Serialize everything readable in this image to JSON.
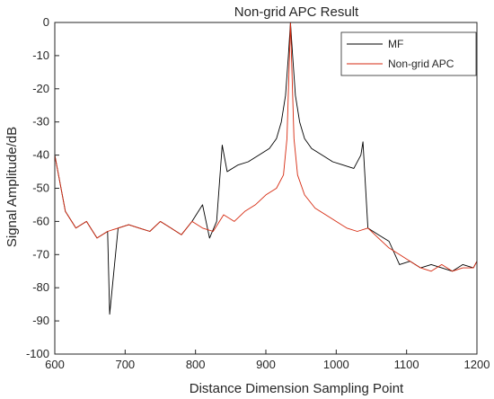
{
  "chart_data": {
    "type": "line",
    "title": "Non-grid APC Result",
    "xlabel": "Distance Dimension Sampling Point",
    "ylabel": "Signal Amplitude/dB",
    "xlim": [
      600,
      1200
    ],
    "ylim": [
      -100,
      0
    ],
    "xticks": [
      600,
      700,
      800,
      900,
      1000,
      1100,
      1200
    ],
    "yticks": [
      0,
      -10,
      -20,
      -30,
      -40,
      -50,
      -60,
      -70,
      -80,
      -90,
      -100
    ],
    "grid": false,
    "legend_position": "top-right",
    "colors": {
      "MF": "#000000",
      "Non-grid APC": "#d62a10",
      "axes": "#262626"
    },
    "series": [
      {
        "name": "MF",
        "x": [
          600,
          615,
          630,
          645,
          660,
          675,
          678,
          690,
          705,
          720,
          735,
          750,
          765,
          780,
          795,
          810,
          820,
          830,
          838,
          845,
          860,
          875,
          890,
          905,
          915,
          922,
          928,
          932,
          935,
          938,
          942,
          948,
          955,
          965,
          980,
          995,
          1010,
          1025,
          1035,
          1038,
          1045,
          1060,
          1075,
          1090,
          1105,
          1120,
          1135,
          1150,
          1165,
          1180,
          1195,
          1200
        ],
        "y": [
          -40,
          -57,
          -62,
          -60,
          -65,
          -63,
          -88,
          -62,
          -61,
          -62,
          -63,
          -60,
          -62,
          -64,
          -60,
          -55,
          -65,
          -60,
          -37,
          -45,
          -43,
          -42,
          -40,
          -38,
          -35,
          -30,
          -22,
          -10,
          0,
          -10,
          -22,
          -30,
          -35,
          -38,
          -40,
          -42,
          -43,
          -44,
          -40,
          -36,
          -62,
          -64,
          -66,
          -73,
          -72,
          -74,
          -73,
          -74,
          -75,
          -73,
          -74,
          -72
        ]
      },
      {
        "name": "Non-grid APC",
        "x": [
          600,
          615,
          630,
          645,
          660,
          675,
          690,
          705,
          720,
          735,
          750,
          765,
          780,
          795,
          810,
          825,
          840,
          855,
          870,
          885,
          900,
          915,
          925,
          930,
          935,
          940,
          945,
          955,
          970,
          985,
          1000,
          1015,
          1030,
          1045,
          1060,
          1075,
          1090,
          1105,
          1120,
          1135,
          1150,
          1165,
          1180,
          1195,
          1200
        ],
        "y": [
          -40,
          -57,
          -62,
          -60,
          -65,
          -63,
          -62,
          -61,
          -62,
          -63,
          -60,
          -62,
          -64,
          -60,
          -62,
          -63,
          -58,
          -60,
          -57,
          -55,
          -52,
          -50,
          -46,
          -35,
          0,
          -35,
          -46,
          -52,
          -56,
          -58,
          -60,
          -62,
          -63,
          -62,
          -65,
          -68,
          -70,
          -72,
          -74,
          -75,
          -73,
          -75,
          -74,
          -74,
          -72
        ]
      }
    ]
  }
}
